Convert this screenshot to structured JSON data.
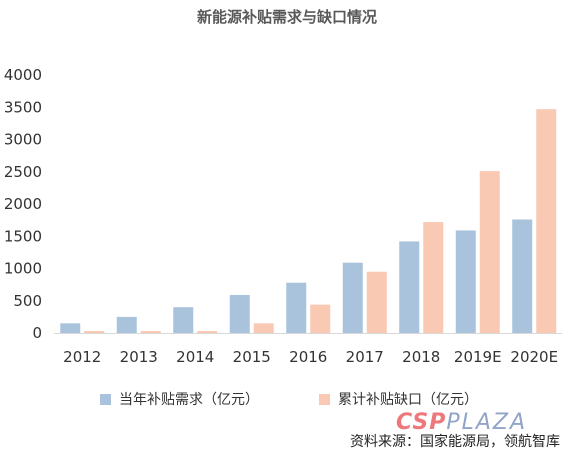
{
  "chart_data": {
    "type": "bar",
    "title": "新能源补贴需求与缺口情况",
    "categories": [
      "2012",
      "2013",
      "2014",
      "2015",
      "2016",
      "2017",
      "2018",
      "2019E",
      "2020E"
    ],
    "series": [
      {
        "name": "当年补贴需求（亿元）",
        "color": "#a9c3dd",
        "values": [
          150,
          250,
          400,
          590,
          780,
          1090,
          1420,
          1590,
          1760
        ]
      },
      {
        "name": "累计补贴缺口（亿元）",
        "color": "#f9c9b4",
        "values": [
          10,
          20,
          20,
          150,
          440,
          950,
          1720,
          2510,
          3470
        ]
      }
    ],
    "yticks": [
      "4000",
      "3500",
      "3000",
      "2500",
      "2000",
      "1500",
      "1000",
      "500",
      "0"
    ],
    "ylim": [
      0,
      4000
    ],
    "grid": false,
    "legend_position": "bottom"
  },
  "source": "资料来源：国家能源局，领航智库",
  "watermark": {
    "brand": "CSP",
    "suffix": "PLAZA"
  }
}
